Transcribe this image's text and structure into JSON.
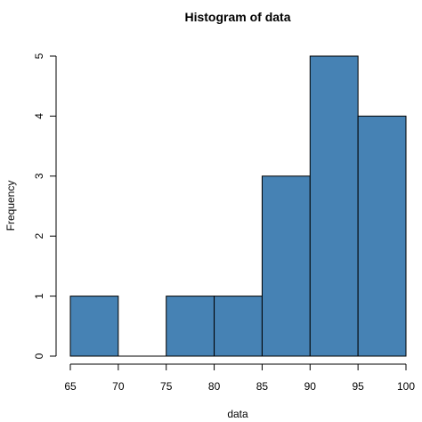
{
  "chart_data": {
    "type": "bar",
    "title": "Histogram of data",
    "xlabel": "data",
    "ylabel": "Frequency",
    "bins": [
      {
        "start": 65,
        "end": 70,
        "count": 1
      },
      {
        "start": 70,
        "end": 75,
        "count": 0
      },
      {
        "start": 75,
        "end": 80,
        "count": 1
      },
      {
        "start": 80,
        "end": 85,
        "count": 1
      },
      {
        "start": 85,
        "end": 90,
        "count": 3
      },
      {
        "start": 90,
        "end": 95,
        "count": 5
      },
      {
        "start": 95,
        "end": 100,
        "count": 4
      }
    ],
    "xticks": [
      "65",
      "70",
      "75",
      "80",
      "85",
      "90",
      "95",
      "100"
    ],
    "yticks": [
      "0",
      "1",
      "2",
      "3",
      "4",
      "5"
    ],
    "xlim": [
      65,
      100
    ],
    "ylim": [
      0,
      5
    ],
    "grid": false,
    "bar_color": "#4682b4",
    "edge_color": "#000000"
  }
}
